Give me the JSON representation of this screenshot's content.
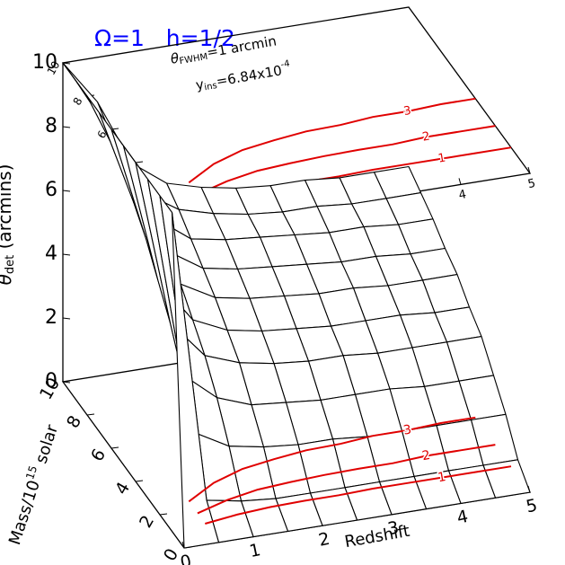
{
  "chart_data": {
    "type": "surface",
    "title": "Ω=1   h=1/2",
    "annotations": [
      [
        "θ",
        "FWHM",
        "=1 arcmin"
      ],
      [
        "y",
        "ins",
        "=6.84x10",
        "-4"
      ]
    ],
    "xlabel": "Redshift",
    "ylabel": [
      "Mass/10",
      "15",
      " solar"
    ],
    "zlabel": [
      "θ",
      "det",
      " (arcmins)"
    ],
    "xlim": [
      0,
      5
    ],
    "ylim": [
      0,
      10
    ],
    "zlim": [
      0,
      10
    ],
    "xticks": [
      0,
      1,
      2,
      3,
      4,
      5
    ],
    "yticks": [
      0,
      2,
      4,
      6,
      8,
      10
    ],
    "zticks": [
      0,
      2,
      4,
      6,
      8,
      10
    ],
    "color": "#000000",
    "contour_color": "#e00000",
    "title_color": "#0000ff",
    "contour_levels": [
      1,
      2,
      3
    ],
    "surface": {
      "x": [
        0,
        0.5,
        1,
        1.5,
        2,
        2.5,
        3,
        3.5,
        4,
        4.5,
        5
      ],
      "y": [
        0,
        1,
        2,
        3,
        4,
        5,
        6,
        7,
        8,
        9,
        10
      ],
      "z": [
        [
          0,
          0,
          0,
          0,
          0,
          0,
          0,
          0,
          0,
          0,
          0
        ],
        [
          10,
          0.8,
          0.6,
          0.5,
          0.5,
          0.5,
          0.5,
          0.5,
          0.5,
          0.5,
          0.5
        ],
        [
          10,
          2.4,
          1.8,
          1.6,
          1.5,
          1.5,
          1.4,
          1.4,
          1.4,
          1.4,
          1.4
        ],
        [
          10,
          3.7,
          2.8,
          2.4,
          2.3,
          2.2,
          2.2,
          2.2,
          2.1,
          2.1,
          2.1
        ],
        [
          10,
          4.8,
          3.6,
          3.2,
          3.0,
          2.9,
          2.9,
          2.8,
          2.8,
          2.8,
          2.8
        ],
        [
          10,
          5.6,
          4.2,
          3.7,
          3.5,
          3.4,
          3.3,
          3.3,
          3.3,
          3.2,
          3.2
        ],
        [
          10,
          6.4,
          4.8,
          4.2,
          4.0,
          3.9,
          3.8,
          3.8,
          3.7,
          3.7,
          3.7
        ],
        [
          10,
          7.0,
          5.3,
          4.6,
          4.4,
          4.3,
          4.2,
          4.1,
          4.1,
          4.0,
          4.0
        ],
        [
          10,
          7.7,
          5.8,
          5.0,
          4.8,
          4.7,
          4.6,
          4.5,
          4.5,
          4.4,
          4.4
        ],
        [
          10,
          8.2,
          6.1,
          5.4,
          5.1,
          4.9,
          4.8,
          4.8,
          4.7,
          4.7,
          4.7
        ],
        [
          10,
          8.6,
          6.5,
          5.7,
          5.4,
          5.2,
          5.1,
          5.1,
          5.0,
          5.0,
          5.0
        ]
      ]
    }
  }
}
